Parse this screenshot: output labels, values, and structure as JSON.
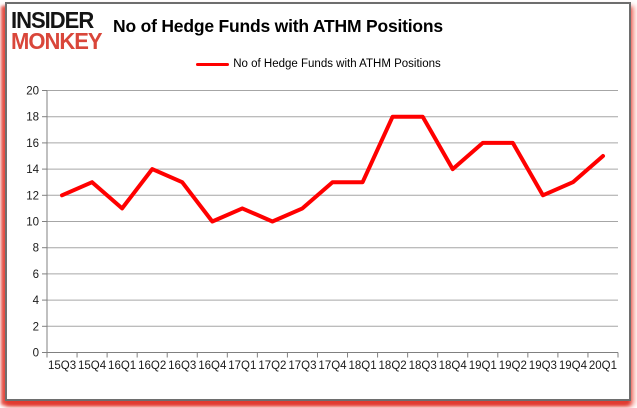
{
  "logo": {
    "line1": "INSIDER",
    "line2": "MONKEY",
    "primary_color": "#141414",
    "accent_color": "#d9463a"
  },
  "header": {
    "title": "No of Hedge Funds with ATHM Positions"
  },
  "legend": {
    "label": "No of Hedge Funds with ATHM Positions",
    "swatch_color": "#ff0000"
  },
  "chart_data": {
    "type": "line",
    "title": "No of Hedge Funds with ATHM Positions",
    "categories": [
      "15Q3",
      "15Q4",
      "16Q1",
      "16Q2",
      "16Q3",
      "16Q4",
      "17Q1",
      "17Q2",
      "17Q3",
      "17Q4",
      "18Q1",
      "18Q2",
      "18Q3",
      "18Q4",
      "19Q1",
      "19Q2",
      "19Q3",
      "19Q4",
      "20Q1"
    ],
    "series": [
      {
        "name": "No of Hedge Funds with ATHM Positions",
        "values": [
          12,
          13,
          11,
          14,
          13,
          10,
          11,
          10,
          11,
          13,
          13,
          18,
          18,
          14,
          16,
          16,
          12,
          13,
          15
        ],
        "color": "#ff0000"
      }
    ],
    "ylim": [
      0,
      20
    ],
    "ytick_step": 2,
    "grid": true,
    "legend_position": "top",
    "axis_color": "#808080",
    "grid_color": "#a6a6a6",
    "tick_label_color": "#1a1a1a"
  }
}
